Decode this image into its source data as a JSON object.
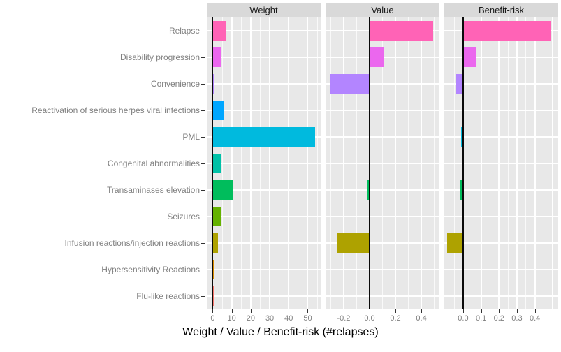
{
  "chart_data": {
    "type": "bar",
    "orientation": "horizontal",
    "xlabel": "Weight / Value / Benefit-risk (#relapses)",
    "legend": "none",
    "grid": "on",
    "categories": [
      "Relapse",
      "Disability progression",
      "Convenience",
      "Reactivation of serious herpes viral infections",
      "PML",
      "Congenital abnormalities",
      "Transaminases elevation",
      "Seizures",
      "Infusion reactions/injection reactions",
      "Hypersensitivity Reactions",
      "Flu-like reactions"
    ],
    "colors": [
      "#FF63B6",
      "#EB67EE",
      "#B385FF",
      "#00A6FF",
      "#00BADE",
      "#00C1A7",
      "#00BD5C",
      "#64B200",
      "#AEA200",
      "#DB8E00",
      "#F8766D"
    ],
    "facets": [
      {
        "label": "Weight",
        "xlim": [
          -3.1,
          56.8
        ],
        "ticks": [
          {
            "value": 0,
            "label": "0"
          },
          {
            "value": 10,
            "label": "10"
          },
          {
            "value": 20,
            "label": "20"
          },
          {
            "value": 30,
            "label": "30"
          },
          {
            "value": 40,
            "label": "40"
          },
          {
            "value": 50,
            "label": "50"
          }
        ],
        "major_gridlines": [
          0,
          10,
          20,
          30,
          40,
          50
        ],
        "minor_gridlines": [
          5,
          15,
          25,
          35,
          45,
          55
        ]
      },
      {
        "label": "Value",
        "xlim": [
          -0.34,
          0.54
        ],
        "ticks": [
          {
            "value": -0.2,
            "label": "-0.2"
          },
          {
            "value": 0,
            "label": "0.0"
          },
          {
            "value": 0.2,
            "label": "0.2"
          },
          {
            "value": 0.4,
            "label": "0.4"
          }
        ],
        "major_gridlines": [
          -0.2,
          0,
          0.2,
          0.4
        ],
        "minor_gridlines": [
          -0.3,
          -0.1,
          0.1,
          0.3,
          0.5
        ]
      },
      {
        "label": "Benefit-risk",
        "xlim": [
          -0.105,
          0.53
        ],
        "ticks": [
          {
            "value": 0,
            "label": "0.0"
          },
          {
            "value": 0.1,
            "label": "0.1"
          },
          {
            "value": 0.2,
            "label": "0.2"
          },
          {
            "value": 0.3,
            "label": "0.3"
          },
          {
            "value": 0.4,
            "label": "0.4"
          }
        ],
        "major_gridlines": [
          0,
          0.1,
          0.2,
          0.3,
          0.4,
          0.5
        ],
        "minor_gridlines": [
          -0.05,
          0.05,
          0.15,
          0.25,
          0.35,
          0.45
        ]
      }
    ],
    "series": [
      {
        "name": "Weight",
        "values": [
          7.3,
          4.6,
          1.0,
          5.9,
          53.9,
          4.4,
          10.9,
          4.7,
          2.7,
          0.9,
          0.7
        ]
      },
      {
        "name": "Value",
        "values": [
          0.49,
          0.11,
          -0.31,
          0,
          0,
          0,
          -0.02,
          0,
          -0.25,
          0,
          0
        ]
      },
      {
        "name": "Benefit-risk",
        "values": [
          0.49,
          0.07,
          -0.04,
          0,
          -0.01,
          0,
          -0.02,
          0,
          -0.09,
          0,
          0
        ]
      }
    ],
    "styles": {
      "panel_bg": "#E8E8E8",
      "strip_bg": "#D9D9D9",
      "strip_text": "#1A1A1A",
      "gridline": "#FFFFFF",
      "axis_text": "#808080",
      "tick_mark": "#333333",
      "zero_line": "#0A0A0A",
      "axis_title_text": "#000000"
    }
  }
}
